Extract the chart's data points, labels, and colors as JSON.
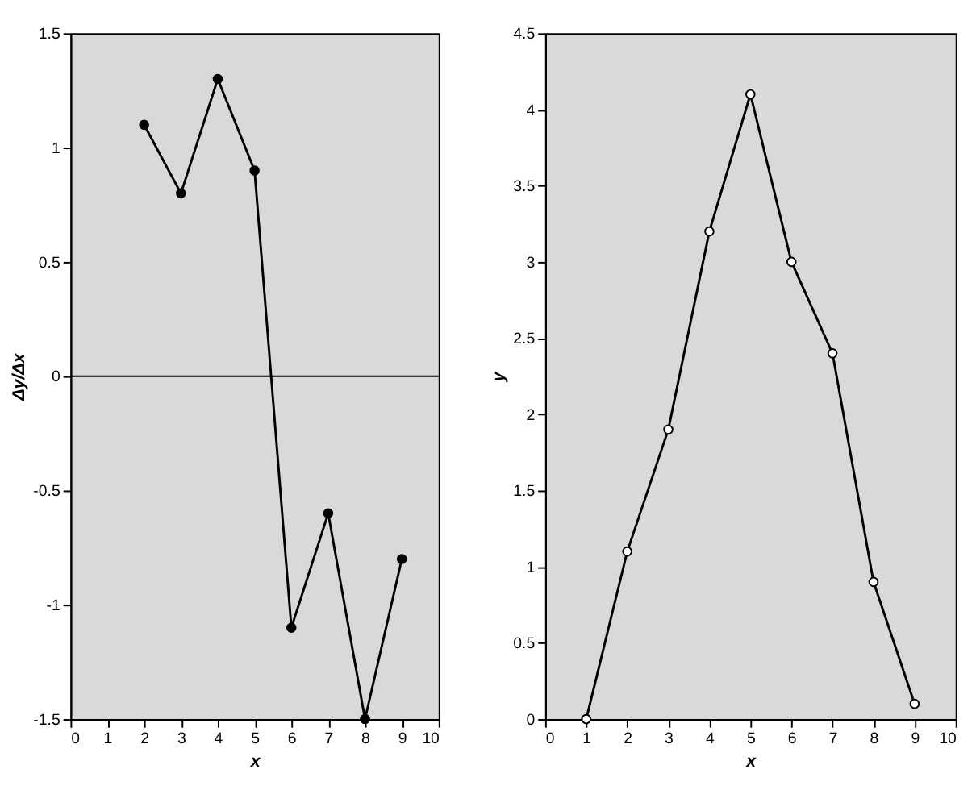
{
  "chart_data": [
    {
      "type": "line",
      "xlabel": "x",
      "ylabel": "Δy/Δx",
      "x": [
        2,
        3,
        4,
        5,
        6,
        7,
        8,
        9
      ],
      "series": [
        {
          "color": "#000000",
          "values": [
            1.1,
            0.8,
            1.3,
            0.9,
            -1.1,
            -0.6,
            -1.5,
            -0.8
          ]
        }
      ],
      "xlim": [
        0,
        10
      ],
      "xticks": [
        0,
        1,
        2,
        3,
        4,
        5,
        6,
        7,
        8,
        9,
        10
      ],
      "ylim": [
        -1.5,
        1.5
      ],
      "yticks": [
        -1.5,
        -1,
        -0.5,
        0,
        0.5,
        1,
        1.5
      ],
      "ref_lines": [
        {
          "axis": "y",
          "value": 0,
          "color": "#000000"
        }
      ],
      "marker": "circle",
      "grid": false
    },
    {
      "type": "line",
      "xlabel": "x",
      "ylabel": "y",
      "x": [
        1,
        2,
        3,
        4,
        5,
        6,
        7,
        8,
        9
      ],
      "series": [
        {
          "color": "#000000",
          "values": [
            0,
            1.1,
            1.9,
            3.2,
            4.1,
            3.0,
            2.4,
            0.9,
            0.1
          ]
        }
      ],
      "xlim": [
        0,
        10
      ],
      "xticks": [
        0,
        1,
        2,
        3,
        4,
        5,
        6,
        7,
        8,
        9,
        10
      ],
      "ylim": [
        0,
        4.5
      ],
      "yticks": [
        0,
        0.5,
        1,
        1.5,
        2,
        2.5,
        3,
        3.5,
        4,
        4.5
      ],
      "marker": "circle",
      "grid": false
    }
  ]
}
